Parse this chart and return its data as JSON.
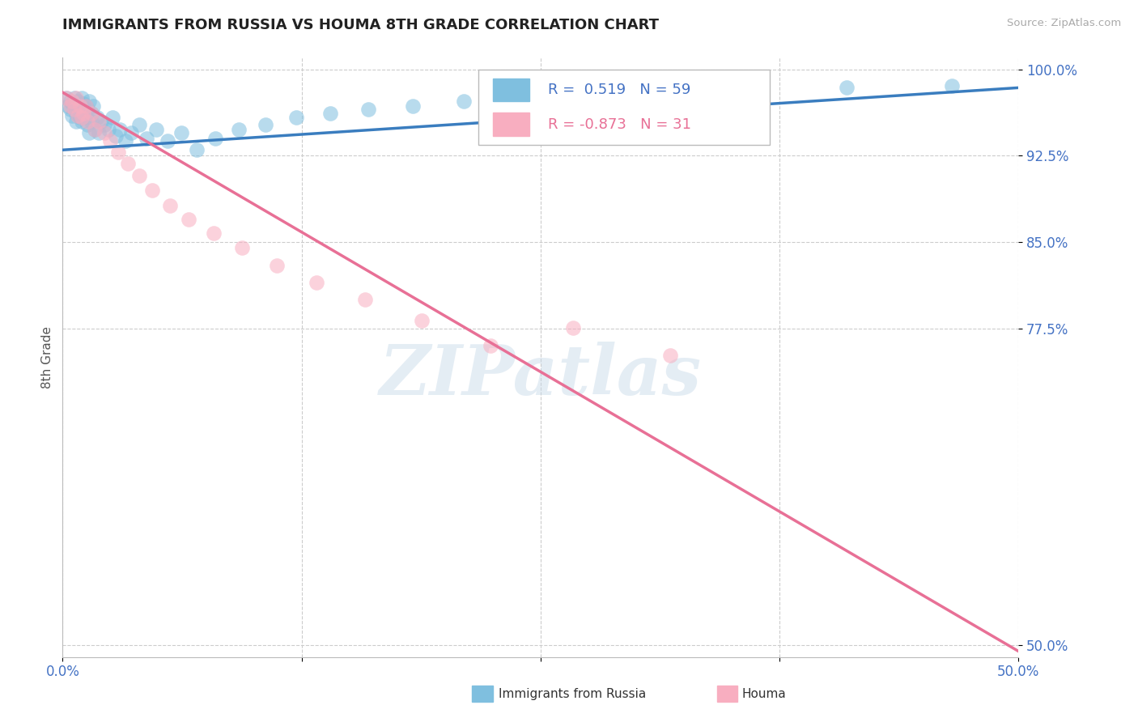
{
  "title": "IMMIGRANTS FROM RUSSIA VS HOUMA 8TH GRADE CORRELATION CHART",
  "source_text": "Source: ZipAtlas.com",
  "ylabel": "8th Grade",
  "xlim": [
    0.0,
    0.5
  ],
  "ylim": [
    0.49,
    1.01
  ],
  "yticks": [
    0.5,
    0.775,
    0.85,
    0.925,
    1.0
  ],
  "ytick_labels": [
    "50.0%",
    "77.5%",
    "85.0%",
    "92.5%",
    "100.0%"
  ],
  "xticks": [
    0.0,
    0.125,
    0.25,
    0.375,
    0.5
  ],
  "xtick_labels": [
    "0.0%",
    "",
    "",
    "",
    "50.0%"
  ],
  "blue_R": "0.519",
  "blue_N": "59",
  "pink_R": "-0.873",
  "pink_N": "31",
  "blue_color": "#7fbfdf",
  "pink_color": "#f8aec0",
  "blue_line_color": "#3a7dbf",
  "pink_line_color": "#e87096",
  "watermark_text": "ZIPatlas",
  "background_color": "#ffffff",
  "grid_color": "#cccccc",
  "title_fontsize": 13,
  "tick_label_color": "#4472c4",
  "legend_text_color_blue": "#4472c4",
  "legend_text_color_pink": "#e87096",
  "blue_scatter_x": [
    0.002,
    0.003,
    0.004,
    0.004,
    0.005,
    0.005,
    0.006,
    0.006,
    0.007,
    0.007,
    0.008,
    0.008,
    0.009,
    0.009,
    0.01,
    0.01,
    0.01,
    0.011,
    0.011,
    0.012,
    0.012,
    0.013,
    0.013,
    0.014,
    0.014,
    0.015,
    0.015,
    0.016,
    0.017,
    0.018,
    0.019,
    0.02,
    0.022,
    0.024,
    0.026,
    0.028,
    0.03,
    0.033,
    0.036,
    0.04,
    0.044,
    0.049,
    0.055,
    0.062,
    0.07,
    0.08,
    0.092,
    0.106,
    0.122,
    0.14,
    0.16,
    0.183,
    0.21,
    0.24,
    0.275,
    0.315,
    0.36,
    0.41,
    0.465
  ],
  "blue_scatter_y": [
    0.975,
    0.968,
    0.972,
    0.965,
    0.97,
    0.96,
    0.968,
    0.975,
    0.962,
    0.955,
    0.972,
    0.965,
    0.968,
    0.958,
    0.975,
    0.965,
    0.955,
    0.962,
    0.97,
    0.958,
    0.968,
    0.952,
    0.965,
    0.972,
    0.945,
    0.962,
    0.955,
    0.968,
    0.948,
    0.958,
    0.945,
    0.955,
    0.952,
    0.948,
    0.958,
    0.942,
    0.948,
    0.938,
    0.945,
    0.952,
    0.94,
    0.948,
    0.938,
    0.945,
    0.93,
    0.94,
    0.948,
    0.952,
    0.958,
    0.962,
    0.965,
    0.968,
    0.972,
    0.975,
    0.978,
    0.98,
    0.982,
    0.984,
    0.986
  ],
  "pink_scatter_x": [
    0.002,
    0.004,
    0.005,
    0.006,
    0.007,
    0.008,
    0.009,
    0.01,
    0.011,
    0.012,
    0.013,
    0.015,
    0.017,
    0.019,
    0.022,
    0.025,
    0.029,
    0.034,
    0.04,
    0.047,
    0.056,
    0.066,
    0.079,
    0.094,
    0.112,
    0.133,
    0.158,
    0.188,
    0.224,
    0.267,
    0.318
  ],
  "pink_scatter_y": [
    0.975,
    0.968,
    0.972,
    0.965,
    0.975,
    0.96,
    0.968,
    0.958,
    0.962,
    0.968,
    0.955,
    0.962,
    0.948,
    0.955,
    0.945,
    0.938,
    0.928,
    0.918,
    0.908,
    0.895,
    0.882,
    0.87,
    0.858,
    0.845,
    0.83,
    0.815,
    0.8,
    0.782,
    0.76,
    0.776,
    0.752
  ],
  "blue_line_x": [
    0.0,
    0.5
  ],
  "blue_line_y": [
    0.93,
    0.984
  ],
  "pink_line_x": [
    0.0,
    0.5
  ],
  "pink_line_y": [
    0.98,
    0.495
  ]
}
